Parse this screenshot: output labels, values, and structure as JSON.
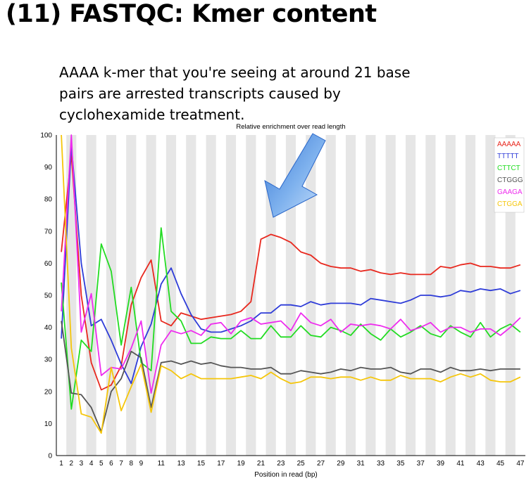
{
  "slide": {
    "title": "(11) FASTQC: Kmer content",
    "caption": "AAAA k-mer that you're seeing at around 21 base pairs are arrested transcripts caused by cyclohexamide treatment."
  },
  "chart_data": {
    "type": "line",
    "title": "Relative enrichment over read length",
    "xlabel": "Position in read (bp)",
    "ylabel": "",
    "xlim": [
      1,
      47
    ],
    "ylim": [
      0,
      100
    ],
    "yticks": [
      0,
      10,
      20,
      30,
      40,
      50,
      60,
      70,
      80,
      90,
      100
    ],
    "xticks": [
      1,
      2,
      3,
      4,
      5,
      6,
      7,
      8,
      9,
      11,
      13,
      15,
      17,
      19,
      21,
      23,
      25,
      27,
      29,
      31,
      33,
      35,
      37,
      39,
      41,
      43,
      45,
      47
    ],
    "grid": "alternating-vertical-bands",
    "legend_position": "top-right",
    "x": [
      1,
      2,
      3,
      4,
      5,
      6,
      7,
      8,
      9,
      10,
      11,
      12,
      13,
      14,
      15,
      16,
      17,
      18,
      19,
      20,
      21,
      22,
      23,
      24,
      25,
      26,
      27,
      28,
      29,
      30,
      31,
      32,
      33,
      34,
      35,
      36,
      37,
      38,
      39,
      40,
      41,
      42,
      43,
      44,
      45,
      46,
      47
    ],
    "series": [
      {
        "name": "AAAAA",
        "color": "#e8281e",
        "values": [
          63.5,
          94,
          50,
          29,
          20.5,
          22,
          28,
          47,
          55.5,
          61,
          42,
          40.5,
          44.5,
          43.5,
          42.5,
          43,
          43.5,
          44,
          45,
          48,
          67.5,
          69,
          68,
          66.5,
          63.5,
          62.5,
          60,
          59,
          58.5,
          58.5,
          57.5,
          58,
          57,
          56.5,
          57,
          56.5,
          56.5,
          56.5,
          59,
          58.5,
          59.5,
          60,
          59,
          59,
          58.5,
          58.5,
          59.5
        ]
      },
      {
        "name": "TTTTT",
        "color": "#2e3cd8",
        "values": [
          36.5,
          97,
          60,
          40.5,
          42.5,
          36,
          28.5,
          22.5,
          34,
          41,
          53.5,
          58.5,
          50.5,
          44,
          39.5,
          38.5,
          38.5,
          39.5,
          40.5,
          42,
          44.5,
          44.5,
          47,
          47,
          46.5,
          48,
          47,
          47.5,
          47.5,
          47.5,
          47,
          49,
          48.5,
          48,
          47.5,
          48.5,
          50,
          50,
          49.5,
          50,
          51.5,
          51,
          52,
          51.5,
          52,
          50.5,
          51.5
        ]
      },
      {
        "name": "CTTCT",
        "color": "#22dc22",
        "values": [
          54,
          14.5,
          36,
          32.5,
          66,
          57.5,
          34.5,
          52.5,
          29,
          26.5,
          71,
          45,
          42,
          35,
          35,
          37,
          36.5,
          36.5,
          39,
          36.5,
          36.5,
          40.5,
          37,
          37,
          40.5,
          37.5,
          37,
          40,
          39,
          37.5,
          41,
          38,
          36,
          39.5,
          37,
          38.5,
          40.5,
          38,
          37,
          40.5,
          38.5,
          37,
          41.5,
          37,
          39.5,
          41,
          38.5
        ]
      },
      {
        "name": "CTGGG",
        "color": "#555555",
        "values": [
          42,
          19.5,
          19,
          15,
          7.5,
          20,
          24,
          32.5,
          30.5,
          15,
          29,
          29.5,
          28.5,
          29.5,
          28.5,
          29,
          28,
          27.5,
          27.5,
          27,
          27,
          27.5,
          25.5,
          25.5,
          26.5,
          26,
          25.5,
          26,
          27,
          26.5,
          27.5,
          27,
          27,
          27.5,
          26,
          25.5,
          27,
          27,
          26,
          27.5,
          26.5,
          26.5,
          27,
          26.5,
          27,
          27,
          27
        ]
      },
      {
        "name": "GAAGA",
        "color": "#ee2cee",
        "values": [
          45,
          100,
          38.5,
          50.5,
          25,
          27.5,
          27,
          33.5,
          42,
          19.5,
          34.5,
          39,
          38,
          39,
          37.5,
          41,
          41.5,
          38,
          42,
          43,
          41,
          41.5,
          42,
          39,
          44.5,
          41.5,
          40.5,
          42.5,
          38.5,
          41,
          40.5,
          41,
          40.5,
          39.5,
          42.5,
          39,
          40,
          41.5,
          38.5,
          40,
          40,
          38.5,
          39.5,
          39.5,
          37.5,
          40,
          43
        ]
      },
      {
        "name": "CTGGA",
        "color": "#f5c60a",
        "values": [
          100,
          33.5,
          13,
          12,
          7,
          27.5,
          14,
          21.5,
          28.5,
          13.5,
          28,
          26.5,
          24,
          25.5,
          24,
          24,
          24,
          24,
          24.5,
          25,
          24,
          26,
          24,
          22.5,
          23,
          24.5,
          24.5,
          24,
          24.5,
          24.5,
          23.5,
          24.5,
          23.5,
          23.5,
          25,
          24,
          24,
          24,
          23,
          24.5,
          25.5,
          24.5,
          25.5,
          23.5,
          23,
          23,
          24.5
        ]
      }
    ]
  }
}
